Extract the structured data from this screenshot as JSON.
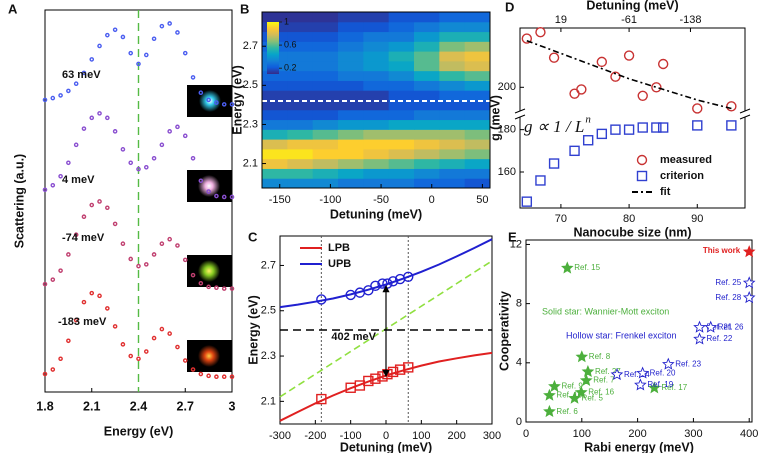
{
  "chart_data": [
    {
      "type": "spectra",
      "label": "A",
      "xlabel": "Energy (eV)",
      "ylabel": "Scattering (a.u.)",
      "xlim": [
        1.8,
        3
      ],
      "ylim": [
        -0.15,
        4.1
      ],
      "xticks": [
        1.8,
        2.1,
        2.4,
        2.7,
        3
      ],
      "vlines": [
        2.4
      ],
      "vline_color": "#55bb44",
      "x": [
        1.8,
        1.85,
        1.9,
        1.95,
        2,
        2.05,
        2.1,
        2.15,
        2.2,
        2.25,
        2.3,
        2.35,
        2.4,
        2.45,
        2.5,
        2.55,
        2.6,
        2.65,
        2.7,
        2.75,
        2.8,
        2.85,
        2.9,
        2.95,
        3
      ],
      "series": [
        {
          "name": "63 meV",
          "color": "#4b5ef0",
          "marker": "circle",
          "values": [
            3.1,
            3.12,
            3.15,
            3.2,
            3.28,
            3.4,
            3.55,
            3.7,
            3.82,
            3.88,
            3.8,
            3.62,
            3.5,
            3.6,
            3.78,
            3.92,
            3.95,
            3.85,
            3.62,
            3.35,
            3.18,
            3.1,
            3.07,
            3.05,
            3.05
          ]
        },
        {
          "name": "4 meV",
          "color": "#8a4fd0",
          "marker": "circle",
          "values": [
            2.1,
            2.15,
            2.25,
            2.4,
            2.6,
            2.78,
            2.9,
            2.95,
            2.9,
            2.75,
            2.55,
            2.4,
            2.33,
            2.35,
            2.45,
            2.6,
            2.75,
            2.8,
            2.7,
            2.45,
            2.2,
            2.08,
            2.03,
            2.02,
            2.02
          ]
        },
        {
          "name": "-74 meV",
          "color": "#c04070",
          "marker": "circle",
          "values": [
            1.05,
            1.1,
            1.2,
            1.38,
            1.6,
            1.8,
            1.93,
            1.97,
            1.9,
            1.72,
            1.5,
            1.33,
            1.25,
            1.27,
            1.38,
            1.5,
            1.55,
            1.48,
            1.32,
            1.15,
            1.06,
            1.02,
            1.01,
            1,
            1
          ]
        },
        {
          "name": "-183 meV",
          "color": "#e03030",
          "marker": "circle",
          "values": [
            0.05,
            0.1,
            0.22,
            0.42,
            0.65,
            0.85,
            0.95,
            0.92,
            0.78,
            0.58,
            0.38,
            0.25,
            0.22,
            0.3,
            0.45,
            0.55,
            0.5,
            0.35,
            0.2,
            0.1,
            0.05,
            0.03,
            0.02,
            0.02,
            0.02
          ]
        }
      ]
    },
    {
      "type": "heatmap",
      "label": "B",
      "xlabel": "Detuning (meV)",
      "ylabel": "Energy (eV)",
      "xlim": [
        -167.5,
        57.5
      ],
      "ylim": [
        1.975,
        2.875
      ],
      "xticks": [
        -150,
        -100,
        -50,
        0,
        50
      ],
      "yticks": [
        2.1,
        2.3,
        2.5,
        2.7
      ],
      "x": [
        -155,
        -130,
        -105,
        -80,
        -55,
        -30,
        -5,
        20,
        45
      ],
      "y": [
        2,
        2.05,
        2.1,
        2.15,
        2.2,
        2.25,
        2.3,
        2.35,
        2.4,
        2.45,
        2.5,
        2.55,
        2.6,
        2.65,
        2.7,
        2.75,
        2.8,
        2.85
      ],
      "z": [
        [
          0.35,
          0.35,
          0.35,
          0.3,
          0.3,
          0.3,
          0.25,
          0.25,
          0.2
        ],
        [
          0.55,
          0.55,
          0.5,
          0.45,
          0.4,
          0.4,
          0.35,
          0.3,
          0.3
        ],
        [
          0.85,
          0.8,
          0.75,
          0.7,
          0.65,
          0.6,
          0.55,
          0.5,
          0.45
        ],
        [
          0.95,
          0.95,
          0.9,
          0.9,
          0.85,
          0.8,
          0.75,
          0.7,
          0.65
        ],
        [
          0.8,
          0.85,
          0.85,
          0.9,
          0.9,
          0.9,
          0.85,
          0.8,
          0.75
        ],
        [
          0.5,
          0.55,
          0.6,
          0.65,
          0.7,
          0.7,
          0.7,
          0.7,
          0.65
        ],
        [
          0.3,
          0.3,
          0.35,
          0.4,
          0.4,
          0.45,
          0.45,
          0.45,
          0.45
        ],
        [
          0.2,
          0.2,
          0.2,
          0.25,
          0.25,
          0.25,
          0.3,
          0.3,
          0.3
        ],
        [
          0.15,
          0.15,
          0.15,
          0.15,
          0.15,
          0.2,
          0.2,
          0.2,
          0.2
        ],
        [
          0.15,
          0.15,
          0.15,
          0.15,
          0.15,
          0.2,
          0.2,
          0.25,
          0.25
        ],
        [
          0.2,
          0.2,
          0.2,
          0.2,
          0.25,
          0.25,
          0.3,
          0.35,
          0.4
        ],
        [
          0.25,
          0.25,
          0.25,
          0.3,
          0.3,
          0.35,
          0.45,
          0.55,
          0.6
        ],
        [
          0.3,
          0.3,
          0.3,
          0.35,
          0.4,
          0.45,
          0.6,
          0.75,
          0.8
        ],
        [
          0.3,
          0.3,
          0.3,
          0.35,
          0.4,
          0.5,
          0.6,
          0.8,
          0.85
        ],
        [
          0.25,
          0.25,
          0.25,
          0.3,
          0.35,
          0.4,
          0.5,
          0.65,
          0.7
        ],
        [
          0.2,
          0.2,
          0.2,
          0.25,
          0.3,
          0.3,
          0.4,
          0.5,
          0.5
        ],
        [
          0.15,
          0.15,
          0.15,
          0.2,
          0.2,
          0.25,
          0.3,
          0.35,
          0.35
        ],
        [
          0.12,
          0.12,
          0.12,
          0.15,
          0.15,
          0.2,
          0.2,
          0.25,
          0.25
        ]
      ],
      "zlim": [
        0.1,
        1
      ],
      "zticks": [
        0.2,
        0.6,
        1
      ],
      "colormap": [
        "#352a87",
        "#0f5cdd",
        "#1481d6",
        "#06a4ca",
        "#2eb7a4",
        "#87bf77",
        "#d1bb59",
        "#fec832",
        "#f9fb0e"
      ],
      "hline": 2.42
    },
    {
      "type": "line",
      "label": "C",
      "xlabel": "Detuning (meV)",
      "ylabel": "Energy (eV)",
      "xlim": [
        -300,
        300
      ],
      "ylim": [
        2,
        2.83
      ],
      "xticks": [
        -300,
        -200,
        -100,
        0,
        100,
        200,
        300
      ],
      "yticks": [
        2.1,
        2.3,
        2.5,
        2.7
      ],
      "series": [
        {
          "name": "LPB",
          "color": "#e02020",
          "x": [
            -300,
            -250,
            -200,
            -150,
            -100,
            -50,
            0,
            50,
            100,
            150,
            200,
            250,
            300
          ],
          "values": [
            2.014,
            2.053,
            2.091,
            2.126,
            2.158,
            2.187,
            2.214,
            2.237,
            2.258,
            2.276,
            2.29,
            2.303,
            2.314
          ]
        },
        {
          "name": "UPB",
          "color": "#2020d0",
          "x": [
            -300,
            -250,
            -200,
            -150,
            -100,
            -50,
            0,
            50,
            100,
            150,
            200,
            250,
            300
          ],
          "values": [
            2.516,
            2.527,
            2.54,
            2.554,
            2.572,
            2.593,
            2.616,
            2.643,
            2.672,
            2.704,
            2.74,
            2.777,
            2.816
          ]
        },
        {
          "color": "#e02020",
          "marker": "square",
          "x": [
            -183,
            -100,
            -74,
            -50,
            -30,
            -10,
            4,
            20,
            40,
            63
          ],
          "values": [
            2.11,
            2.16,
            2.17,
            2.19,
            2.2,
            2.21,
            2.22,
            2.23,
            2.24,
            2.25
          ]
        },
        {
          "color": "#2020d0",
          "marker": "circle",
          "x": [
            -183,
            -100,
            -74,
            -50,
            -30,
            -10,
            4,
            20,
            40,
            63
          ],
          "values": [
            2.55,
            2.57,
            2.58,
            2.59,
            2.61,
            2.62,
            2.62,
            2.63,
            2.64,
            2.65
          ]
        },
        {
          "color": "#90e040",
          "dash": "7,4",
          "x": [
            -300,
            300
          ],
          "values": [
            2.12,
            2.72
          ]
        },
        {
          "color": "#000000",
          "dash": "8,5",
          "x": [
            -300,
            300
          ],
          "values": [
            2.415,
            2.415
          ]
        }
      ],
      "vlines": [
        -183,
        63
      ],
      "vline_color": "#555555",
      "arrow": {
        "x": 0,
        "y": [
          2.21,
          2.61
        ]
      },
      "annotation": "402 meV"
    },
    {
      "type": "scatter",
      "label": "D",
      "xlabel": "Nanocube size (nm)",
      "ylabel": "g (meV)",
      "x2label": "Detuning (meV)",
      "xlim": [
        64,
        97
      ],
      "ylim": [
        143,
        228
      ],
      "xticks": [
        70,
        80,
        90
      ],
      "yticks": [
        160,
        180,
        200
      ],
      "x2ticks": [
        {
          "value": 70,
          "label": "19"
        },
        {
          "value": 80,
          "label": "-61"
        },
        {
          "value": 89,
          "label": "-138"
        }
      ],
      "axis_break": true,
      "series": [
        {
          "name": "measured",
          "color": "#c83232",
          "marker": "circle",
          "x": [
            65,
            67,
            69,
            72,
            73,
            76,
            78,
            80,
            82,
            84,
            85,
            90,
            95
          ],
          "values": [
            223,
            226,
            214,
            197,
            199,
            212,
            205,
            215,
            196,
            200,
            211,
            190,
            191
          ]
        },
        {
          "name": "criterion",
          "color": "#3040d0",
          "marker": "square",
          "x": [
            65,
            67,
            69,
            72,
            74,
            76,
            78,
            80,
            82,
            84,
            85,
            90,
            95
          ],
          "values": [
            146,
            156,
            164,
            170,
            175,
            178,
            180,
            180,
            181,
            181,
            181,
            182,
            182
          ]
        },
        {
          "name": "fit",
          "color": "#000000",
          "dash": "6,3,2,3",
          "x": [
            65,
            70,
            75,
            80,
            85,
            90,
            95
          ],
          "values": [
            222,
            216,
            210,
            204,
            199,
            194,
            190
          ]
        }
      ],
      "annotation": "g ∝ 1 / L",
      "annotation_exponent": "n"
    },
    {
      "type": "scatter",
      "label": "E",
      "xlabel": "Rabi energy (meV)",
      "ylabel": "Cooperativity",
      "xlim": [
        0,
        405
      ],
      "ylim": [
        0,
        12.3
      ],
      "xticks": [
        0,
        100,
        200,
        300,
        400
      ],
      "yticks": [
        0,
        4,
        8,
        12
      ],
      "series": [
        {
          "name": "Solid star: Wannier-Mott exciton",
          "color": "#4caf3c",
          "marker": "star",
          "filled": true,
          "labels": [
            "Ref. 15",
            "Ref. 8",
            "Ref. 27",
            "Ref. 7",
            "Ref. 9",
            "Ref. 16",
            "Ref. 17",
            "Ref. 10",
            "Ref. 5",
            "Ref. 6"
          ],
          "x": [
            74,
            100,
            111,
            108,
            51,
            99,
            230,
            42,
            87,
            42
          ],
          "values": [
            10.4,
            4.4,
            3.4,
            2.8,
            2.4,
            2,
            2.3,
            1.8,
            1.6,
            0.7
          ]
        },
        {
          "name": "Hollow star: Frenkel exciton",
          "color": "#2222cc",
          "marker": "star",
          "filled": false,
          "labels": [
            "Ref. 25",
            "Ref. 28",
            "Ref. 21",
            "Ref. 26",
            "Ref. 22",
            "Ref. 24",
            "Ref. 23",
            "Ref. 20",
            "Ref. 19"
          ],
          "x": [
            400,
            400,
            311,
            331,
            311,
            163,
            255,
            209,
            205
          ],
          "values": [
            9.4,
            8.4,
            6.4,
            6.4,
            5.6,
            3.2,
            3.9,
            3.3,
            2.5
          ]
        },
        {
          "name": "This work",
          "color": "#e02020",
          "marker": "star",
          "filled": true,
          "x": [
            400
          ],
          "values": [
            11.5
          ]
        }
      ]
    }
  ]
}
